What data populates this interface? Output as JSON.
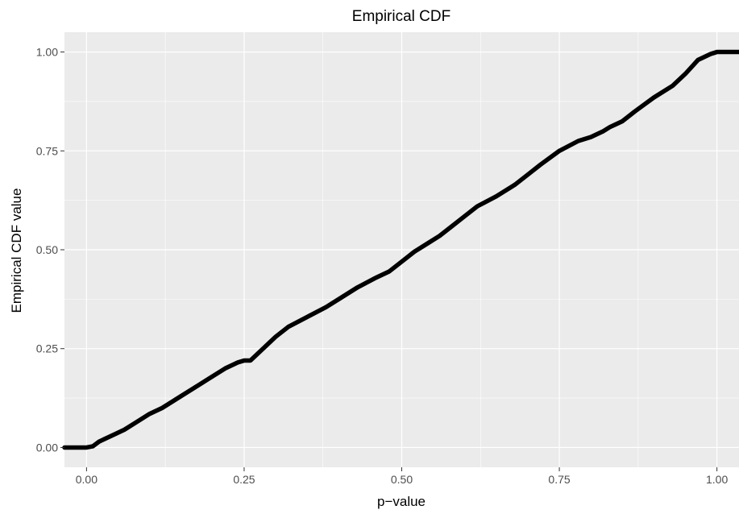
{
  "chart_data": {
    "type": "line",
    "title": "Empirical CDF",
    "xlabel": "p−value",
    "ylabel": "Empirical CDF value",
    "xlim": [
      -0.035,
      1.035
    ],
    "ylim": [
      -0.05,
      1.05
    ],
    "x_ticks": [
      0.0,
      0.25,
      0.5,
      0.75,
      1.0
    ],
    "x_tick_labels": [
      "0.00",
      "0.25",
      "0.50",
      "0.75",
      "1.00"
    ],
    "y_ticks": [
      0.0,
      0.25,
      0.5,
      0.75,
      1.0
    ],
    "y_tick_labels": [
      "0.00",
      "0.25",
      "0.50",
      "0.75",
      "1.00"
    ],
    "grid": true,
    "legend": "none",
    "colors": {
      "panel_background": "#ebebeb",
      "grid": "#ffffff",
      "line": "#000000",
      "tick_text": "#4d4d4d"
    },
    "series": [
      {
        "x": [
          -0.035,
          0.0,
          0.01,
          0.02,
          0.04,
          0.06,
          0.08,
          0.1,
          0.12,
          0.15,
          0.18,
          0.2,
          0.22,
          0.24,
          0.25,
          0.26,
          0.28,
          0.3,
          0.32,
          0.35,
          0.38,
          0.4,
          0.43,
          0.46,
          0.48,
          0.5,
          0.52,
          0.54,
          0.56,
          0.58,
          0.6,
          0.62,
          0.65,
          0.68,
          0.7,
          0.72,
          0.75,
          0.78,
          0.8,
          0.82,
          0.83,
          0.85,
          0.87,
          0.9,
          0.93,
          0.95,
          0.97,
          0.99,
          1.0,
          1.035
        ],
        "y": [
          0.0,
          0.0,
          0.003,
          0.015,
          0.03,
          0.045,
          0.065,
          0.085,
          0.1,
          0.13,
          0.16,
          0.18,
          0.2,
          0.215,
          0.22,
          0.22,
          0.25,
          0.28,
          0.305,
          0.33,
          0.355,
          0.375,
          0.405,
          0.43,
          0.445,
          0.47,
          0.495,
          0.515,
          0.535,
          0.56,
          0.585,
          0.61,
          0.635,
          0.665,
          0.69,
          0.715,
          0.75,
          0.775,
          0.785,
          0.8,
          0.81,
          0.825,
          0.85,
          0.885,
          0.915,
          0.945,
          0.98,
          0.995,
          1.0,
          1.0
        ]
      }
    ]
  }
}
